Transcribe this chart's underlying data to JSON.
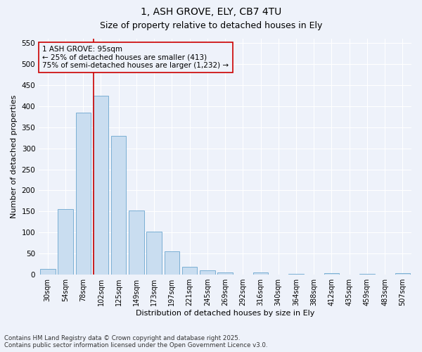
{
  "title_line1": "1, ASH GROVE, ELY, CB7 4TU",
  "title_line2": "Size of property relative to detached houses in Ely",
  "xlabel": "Distribution of detached houses by size in Ely",
  "ylabel": "Number of detached properties",
  "categories": [
    "30sqm",
    "54sqm",
    "78sqm",
    "102sqm",
    "125sqm",
    "149sqm",
    "173sqm",
    "197sqm",
    "221sqm",
    "245sqm",
    "269sqm",
    "292sqm",
    "316sqm",
    "340sqm",
    "364sqm",
    "388sqm",
    "412sqm",
    "435sqm",
    "459sqm",
    "483sqm",
    "507sqm"
  ],
  "values": [
    13,
    155,
    385,
    425,
    330,
    152,
    102,
    55,
    18,
    10,
    5,
    0,
    5,
    0,
    2,
    0,
    3,
    0,
    2,
    0,
    3
  ],
  "bar_color": "#c9ddf0",
  "bar_edge_color": "#7aafd4",
  "vline_color": "#cc0000",
  "box_edge_color": "#cc0000",
  "ylim": [
    0,
    560
  ],
  "yticks": [
    0,
    50,
    100,
    150,
    200,
    250,
    300,
    350,
    400,
    450,
    500,
    550
  ],
  "background_color": "#eef2fa",
  "grid_color": "#ffffff",
  "footer_line1": "Contains HM Land Registry data © Crown copyright and database right 2025.",
  "footer_line2": "Contains public sector information licensed under the Open Government Licence v3.0.",
  "ann_line1": "1 ASH GROVE: 95sqm",
  "ann_line2": "← 25% of detached houses are smaller (413)",
  "ann_line3": "75% of semi-detached houses are larger (1,232) →",
  "vline_bar_idx": 3
}
